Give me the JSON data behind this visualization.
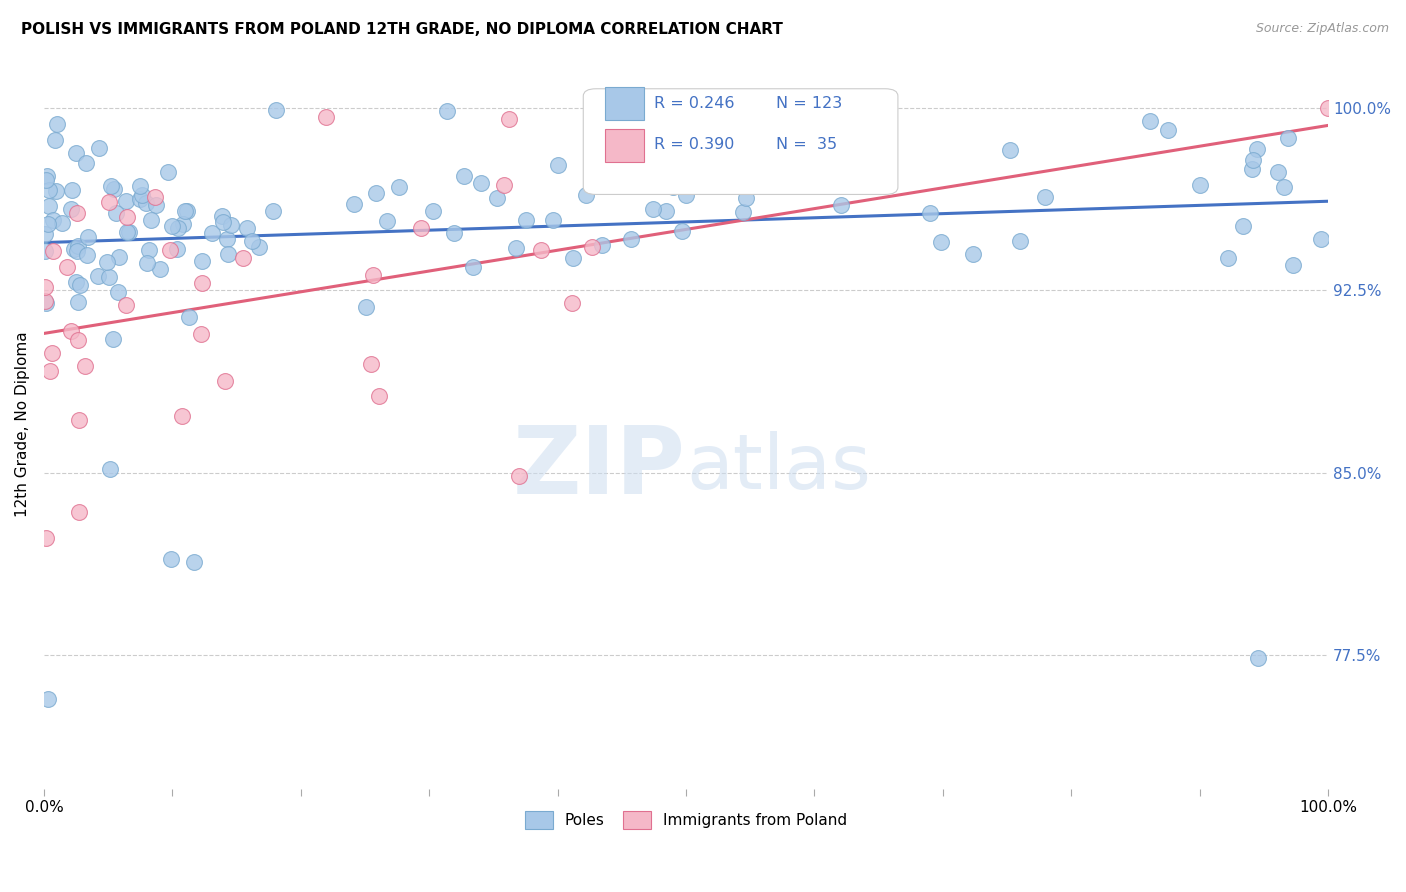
{
  "title": "POLISH VS IMMIGRANTS FROM POLAND 12TH GRADE, NO DIPLOMA CORRELATION CHART",
  "source": "Source: ZipAtlas.com",
  "ylabel": "12th Grade, No Diploma",
  "yticks": [
    77.5,
    85.0,
    92.5,
    100.0
  ],
  "xlim": [
    0.0,
    1.0
  ],
  "ylim": [
    0.72,
    1.02
  ],
  "watermark_zip": "ZIP",
  "watermark_atlas": "atlas",
  "legend_R_poles": "R = 0.246",
  "legend_N_poles": "N = 123",
  "legend_R_immigrants": "R = 0.390",
  "legend_N_immigrants": "N =  35",
  "poles_color": "#a8c8e8",
  "poles_edge_color": "#7aaad0",
  "immigrants_color": "#f5b8c8",
  "immigrants_edge_color": "#e07090",
  "trend_poles_color": "#4472c4",
  "trend_immigrants_color": "#e0607a",
  "n_poles": 123,
  "n_immigrants": 35,
  "R_poles": 0.246,
  "R_immigrants": 0.39
}
